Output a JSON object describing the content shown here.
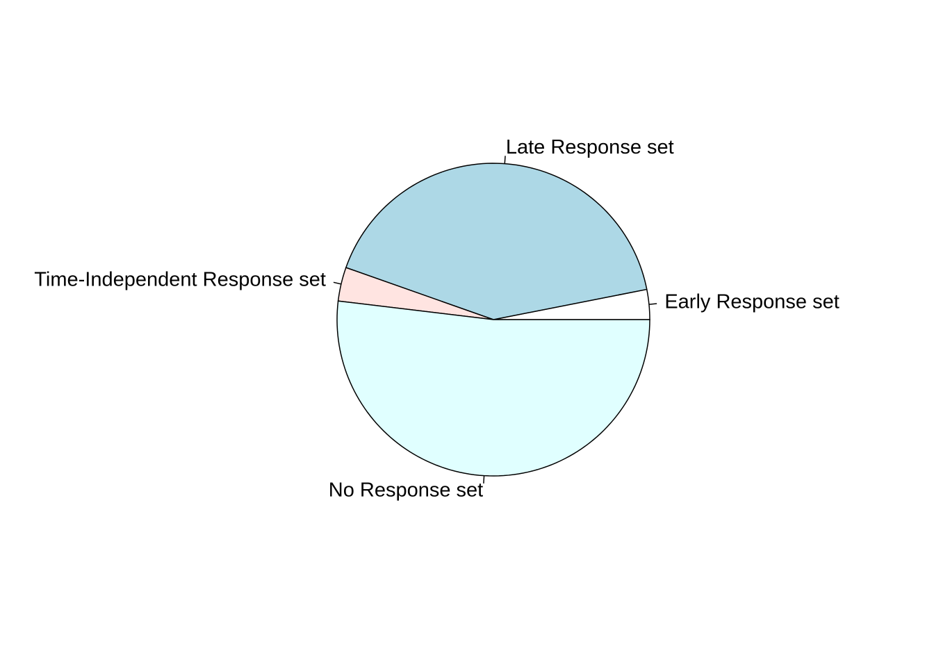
{
  "chart_data": {
    "type": "pie",
    "title": "",
    "start_angle_deg": 0,
    "direction": "counterclockwise",
    "slices": [
      {
        "label": "Early Response set",
        "value": 3.1,
        "color": "#ffffff"
      },
      {
        "label": "Late Response set",
        "value": 41.5,
        "color": "#add8e6"
      },
      {
        "label": "Time-Independent Response set",
        "value": 3.5,
        "color": "#ffe4e1"
      },
      {
        "label": "No Response set",
        "value": 51.9,
        "color": "#e0ffff"
      }
    ]
  }
}
